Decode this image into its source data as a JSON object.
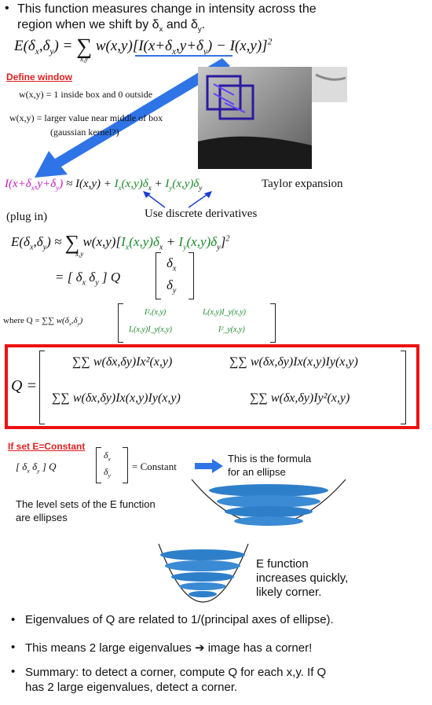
{
  "intro": {
    "line1": "This function measures change in intensity across the",
    "line2": "region when we shift by δ",
    "sub_x": "x",
    "and": "and δ",
    "sub_y": "y",
    "period": "."
  },
  "energy_eq": {
    "lhs": "E(δ",
    "lhs_x": "x",
    "lhs_mid": ",δ",
    "lhs_y": "y",
    "lhs_end": ") =",
    "sum": "∑",
    "sum_sub": "x,y",
    "w": "w(x,y)",
    "bracket": "[I(x+δ",
    "bx": "x",
    "bmid": ",y+δ",
    "by": "y",
    "bend": ") − I(x,y)]",
    "sq": "2"
  },
  "define_window": {
    "title": "Define window",
    "line1": "w(x,y) = 1 inside box and 0 outside",
    "line2": "w(x,y) =  larger value near middle of box",
    "line3": "(gaussian kernel?)"
  },
  "taylor": {
    "lhs": "I(x+δ",
    "lhs_x": "x",
    "lhs_mid": ",y+δ",
    "lhs_y": "y",
    "lhs_end": ")",
    "approx": "≈ I(x,y) +",
    "ix": "I",
    "ix_sub": "x",
    "ix_arg": "(x,y)δ",
    "ix_d": "x",
    "plus": "+",
    "iy": "I",
    "iy_sub": "y",
    "iy_arg": "(x,y)δ",
    "iy_d": "y",
    "label": "Taylor expansion",
    "note": "Use discrete derivatives"
  },
  "plugin": {
    "label": "(plug in)",
    "lhs": "E(δ",
    "lhs_x": "x",
    "lhs_mid": ",δ",
    "lhs_y": "y",
    "lhs_end": ") ≈",
    "sum": "∑",
    "sum_sub": "x,y",
    "w": "w(x,y)[",
    "ix": "I",
    "ix_sub": "x",
    "ix_arg": "(x,y)δ",
    "ix_d": "x",
    "plus": " + ",
    "iy": "I",
    "iy_sub": "y",
    "iy_arg": "(x,y)δ",
    "iy_d": "y",
    "close": "]",
    "sq": "2",
    "eq2": "= [  δ",
    "eq2_x": "x",
    "eq2_mid": "  δ",
    "eq2_y": "y",
    "eq2_end": "  ] Q",
    "vec_x": "δ",
    "vec_x_sub": "x",
    "vec_y": "δ",
    "vec_y_sub": "y"
  },
  "where": {
    "label": "where Q = ",
    "sums": "∑∑ w(δ",
    "sx": "x",
    "smid": ",δ",
    "sy": "y",
    "send": ")",
    "sub1": "δx",
    "sub2": "δy",
    "m11": "I²ₓ(x,y)",
    "m12": "Iₓ(x,y)I_y(x,y)",
    "m21": "Iₓ(x,y)I_y(x,y)",
    "m22": "I²_y(x,y)"
  },
  "big_q": {
    "label": "Q =",
    "cells": [
      "∑∑ w(δx,δy)Ix²(x,y)",
      "∑∑ w(δx,δy)Ix(x,y)Iy(x,y)",
      "∑∑ w(δx,δy)Ix(x,y)Iy(x,y)",
      "∑∑ w(δx,δy)Iy²(x,y)"
    ]
  },
  "ellipse": {
    "title": "If set E=Constant",
    "eq_left": "[  δ",
    "eq_x": "x",
    "eq_mid": "   δ",
    "eq_y": "y",
    "eq_end": "  ] Q",
    "eq_rhs": "= Constant",
    "formula_note_1": "This is the formula",
    "formula_note_2": "for an ellipse",
    "level_1": "The level sets of the E function",
    "level_2": "are ellipses",
    "corner_1": "E function",
    "corner_2": "increases quickly,",
    "corner_3": "likely corner."
  },
  "bullets": [
    "Eigenvalues of Q are related to 1/(principal axes of ellipse).",
    "This means 2 large eigenvalues ➔ image has a corner!",
    "Summary: to detect a corner, compute Q for each x,y. If Q",
    "has 2 large eigenvalues, detect a corner."
  ],
  "colors": {
    "red_box": "#ee1111",
    "blue_arrow": "#2f74e6",
    "green": "#1a8a2a",
    "magenta": "#c020c0",
    "bowl": "#2e7fc9"
  }
}
